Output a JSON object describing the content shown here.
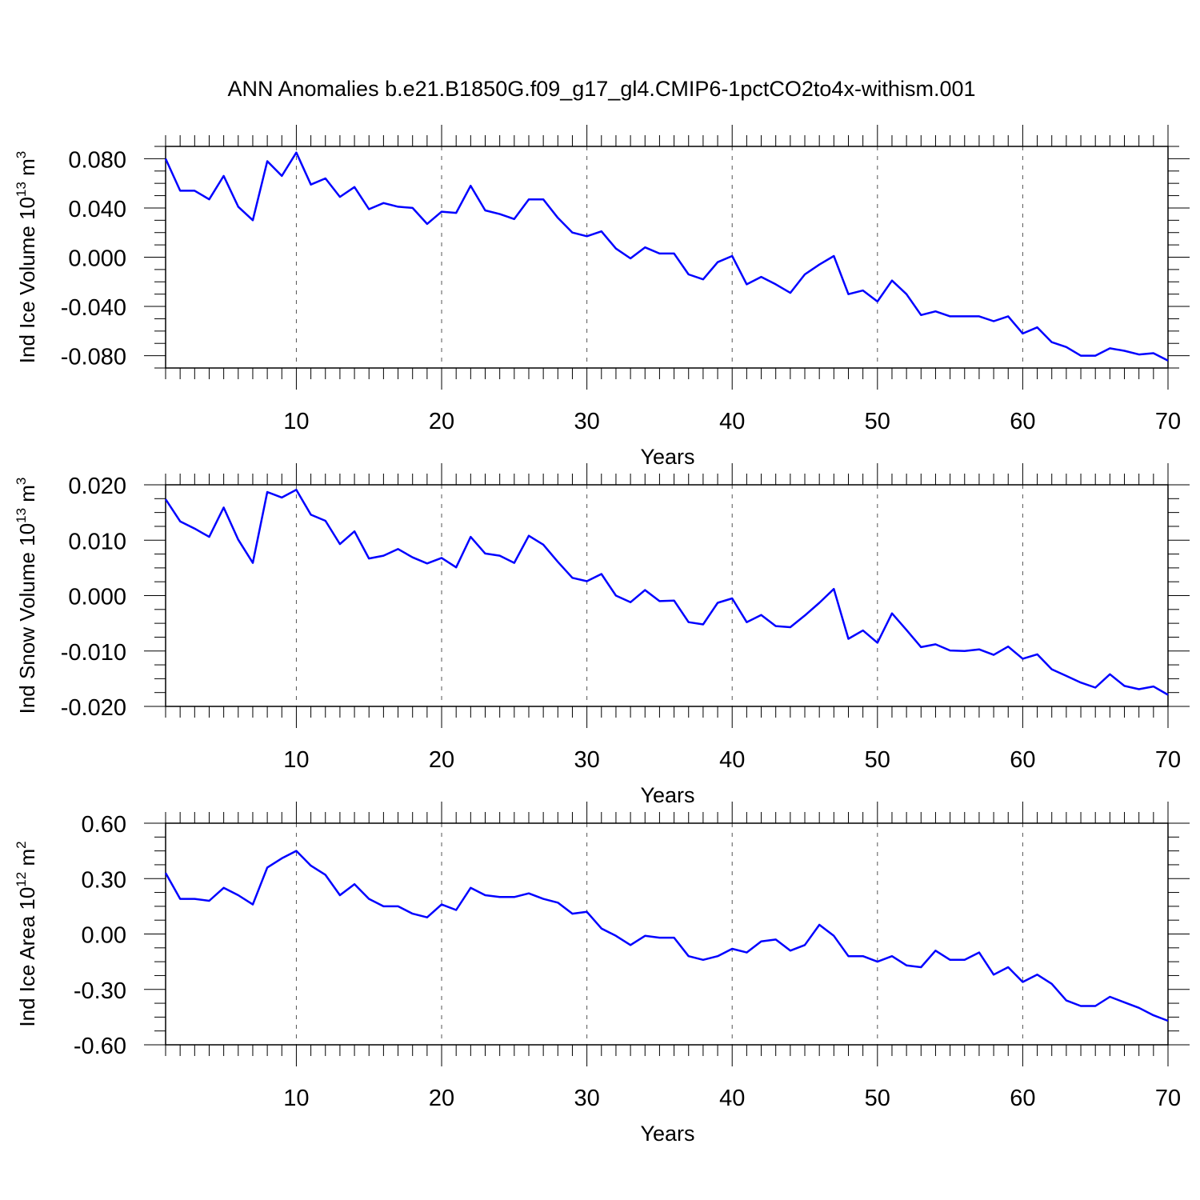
{
  "title": "ANN Anomalies b.e21.B1850G.f09_g17_gl4.CMIP6-1pctCO2to4x-withism.001",
  "chart_data": [
    {
      "type": "line",
      "ylabel_prefix": "Ind Ice Volume 10",
      "ylabel_exp": "13",
      "ylabel_unit": " m",
      "ylabel_unit_exp": "3",
      "xlabel": "Years",
      "xlim": [
        1,
        70
      ],
      "ylim": [
        -0.09,
        0.09
      ],
      "xticks": [
        10,
        20,
        30,
        40,
        50,
        60,
        70
      ],
      "xtick_labels": [
        "10",
        "20",
        "30",
        "40",
        "50",
        "60",
        "70"
      ],
      "yticks": [
        0.08,
        0.04,
        0.0,
        -0.04,
        -0.08
      ],
      "ytick_labels": [
        "0.080",
        "0.040",
        "0.000",
        "-0.040",
        "-0.080"
      ],
      "grid": "vertical dashed at major x ticks",
      "color": "#0000ff",
      "x": [
        1,
        2,
        3,
        4,
        5,
        6,
        7,
        8,
        9,
        10,
        11,
        12,
        13,
        14,
        15,
        16,
        17,
        18,
        19,
        20,
        21,
        22,
        23,
        24,
        25,
        26,
        27,
        28,
        29,
        30,
        31,
        32,
        33,
        34,
        35,
        36,
        37,
        38,
        39,
        40,
        41,
        42,
        43,
        44,
        45,
        46,
        47,
        48,
        49,
        50,
        51,
        52,
        53,
        54,
        55,
        56,
        57,
        58,
        59,
        60,
        61,
        62,
        63,
        64,
        65,
        66,
        67,
        68,
        69,
        70
      ],
      "values": [
        0.08,
        0.054,
        0.054,
        0.047,
        0.066,
        0.041,
        0.03,
        0.078,
        0.066,
        0.085,
        0.059,
        0.064,
        0.049,
        0.057,
        0.039,
        0.044,
        0.041,
        0.04,
        0.027,
        0.037,
        0.036,
        0.058,
        0.038,
        0.035,
        0.031,
        0.047,
        0.047,
        0.032,
        0.02,
        0.017,
        0.021,
        0.007,
        -0.001,
        0.008,
        0.003,
        0.003,
        -0.014,
        -0.018,
        -0.004,
        0.001,
        -0.022,
        -0.016,
        -0.022,
        -0.029,
        -0.014,
        -0.006,
        0.001,
        -0.03,
        -0.027,
        -0.036,
        -0.019,
        -0.03,
        -0.047,
        -0.044,
        -0.048,
        -0.048,
        -0.048,
        -0.052,
        -0.048,
        -0.062,
        -0.057,
        -0.069,
        -0.073,
        -0.08,
        -0.08,
        -0.074,
        -0.076,
        -0.079,
        -0.078,
        -0.084
      ]
    },
    {
      "type": "line",
      "ylabel_prefix": "Ind Snow Volume 10",
      "ylabel_exp": "13",
      "ylabel_unit": " m",
      "ylabel_unit_exp": "3",
      "xlabel": "Years",
      "xlim": [
        1,
        70
      ],
      "ylim": [
        -0.02,
        0.02
      ],
      "xticks": [
        10,
        20,
        30,
        40,
        50,
        60,
        70
      ],
      "xtick_labels": [
        "10",
        "20",
        "30",
        "40",
        "50",
        "60",
        "70"
      ],
      "yticks": [
        0.02,
        0.01,
        0.0,
        -0.01,
        -0.02
      ],
      "ytick_labels": [
        "0.020",
        "0.010",
        "0.000",
        "-0.010",
        "-0.020"
      ],
      "grid": "vertical dashed at major x ticks",
      "color": "#0000ff",
      "x": [
        1,
        2,
        3,
        4,
        5,
        6,
        7,
        8,
        9,
        10,
        11,
        12,
        13,
        14,
        15,
        16,
        17,
        18,
        19,
        20,
        21,
        22,
        23,
        24,
        25,
        26,
        27,
        28,
        29,
        30,
        31,
        32,
        33,
        34,
        35,
        36,
        37,
        38,
        39,
        40,
        41,
        42,
        43,
        44,
        45,
        46,
        47,
        48,
        49,
        50,
        51,
        52,
        53,
        54,
        55,
        56,
        57,
        58,
        59,
        60,
        61,
        62,
        63,
        64,
        65,
        66,
        67,
        68,
        69,
        70
      ],
      "values": [
        0.0174,
        0.0134,
        0.0121,
        0.0106,
        0.0159,
        0.0101,
        0.0059,
        0.0187,
        0.0177,
        0.0191,
        0.0146,
        0.0135,
        0.0093,
        0.0116,
        0.0067,
        0.0072,
        0.0084,
        0.0069,
        0.0058,
        0.0068,
        0.0051,
        0.0106,
        0.0076,
        0.0072,
        0.0059,
        0.0108,
        0.0092,
        0.0061,
        0.0032,
        0.0026,
        0.0039,
        0.0,
        -0.0012,
        0.001,
        -0.001,
        -0.0009,
        -0.0048,
        -0.0052,
        -0.0013,
        -0.0005,
        -0.0048,
        -0.0035,
        -0.0055,
        -0.0057,
        -0.0036,
        -0.0013,
        0.0012,
        -0.0078,
        -0.0063,
        -0.0085,
        -0.0032,
        -0.0062,
        -0.0093,
        -0.0088,
        -0.0099,
        -0.01,
        -0.0097,
        -0.0107,
        -0.0092,
        -0.0114,
        -0.0106,
        -0.0133,
        -0.0145,
        -0.0157,
        -0.0166,
        -0.0142,
        -0.0163,
        -0.0169,
        -0.0164,
        -0.0179
      ]
    },
    {
      "type": "line",
      "ylabel_prefix": "Ind Ice Area 10",
      "ylabel_exp": "12",
      "ylabel_unit": " m",
      "ylabel_unit_exp": "2",
      "xlabel": "Years",
      "xlim": [
        1,
        70
      ],
      "ylim": [
        -0.6,
        0.6
      ],
      "xticks": [
        10,
        20,
        30,
        40,
        50,
        60,
        70
      ],
      "xtick_labels": [
        "10",
        "20",
        "30",
        "40",
        "50",
        "60",
        "70"
      ],
      "yticks": [
        0.6,
        0.3,
        0.0,
        -0.3,
        -0.6
      ],
      "ytick_labels": [
        "0.60",
        "0.30",
        "0.00",
        "-0.30",
        "-0.60"
      ],
      "grid": "vertical dashed at major x ticks",
      "color": "#0000ff",
      "x": [
        1,
        2,
        3,
        4,
        5,
        6,
        7,
        8,
        9,
        10,
        11,
        12,
        13,
        14,
        15,
        16,
        17,
        18,
        19,
        20,
        21,
        22,
        23,
        24,
        25,
        26,
        27,
        28,
        29,
        30,
        31,
        32,
        33,
        34,
        35,
        36,
        37,
        38,
        39,
        40,
        41,
        42,
        43,
        44,
        45,
        46,
        47,
        48,
        49,
        50,
        51,
        52,
        53,
        54,
        55,
        56,
        57,
        58,
        59,
        60,
        61,
        62,
        63,
        64,
        65,
        66,
        67,
        68,
        69,
        70
      ],
      "values": [
        0.33,
        0.19,
        0.19,
        0.18,
        0.25,
        0.21,
        0.16,
        0.36,
        0.41,
        0.45,
        0.37,
        0.32,
        0.21,
        0.27,
        0.19,
        0.15,
        0.15,
        0.11,
        0.09,
        0.16,
        0.13,
        0.25,
        0.21,
        0.2,
        0.2,
        0.22,
        0.19,
        0.17,
        0.11,
        0.12,
        0.03,
        -0.01,
        -0.06,
        -0.01,
        -0.02,
        -0.02,
        -0.12,
        -0.14,
        -0.12,
        -0.08,
        -0.1,
        -0.04,
        -0.03,
        -0.09,
        -0.06,
        0.05,
        -0.01,
        -0.12,
        -0.12,
        -0.15,
        -0.12,
        -0.17,
        -0.18,
        -0.09,
        -0.14,
        -0.14,
        -0.1,
        -0.22,
        -0.18,
        -0.26,
        -0.22,
        -0.27,
        -0.36,
        -0.39,
        -0.39,
        -0.34,
        -0.37,
        -0.4,
        -0.44,
        -0.47
      ]
    }
  ]
}
